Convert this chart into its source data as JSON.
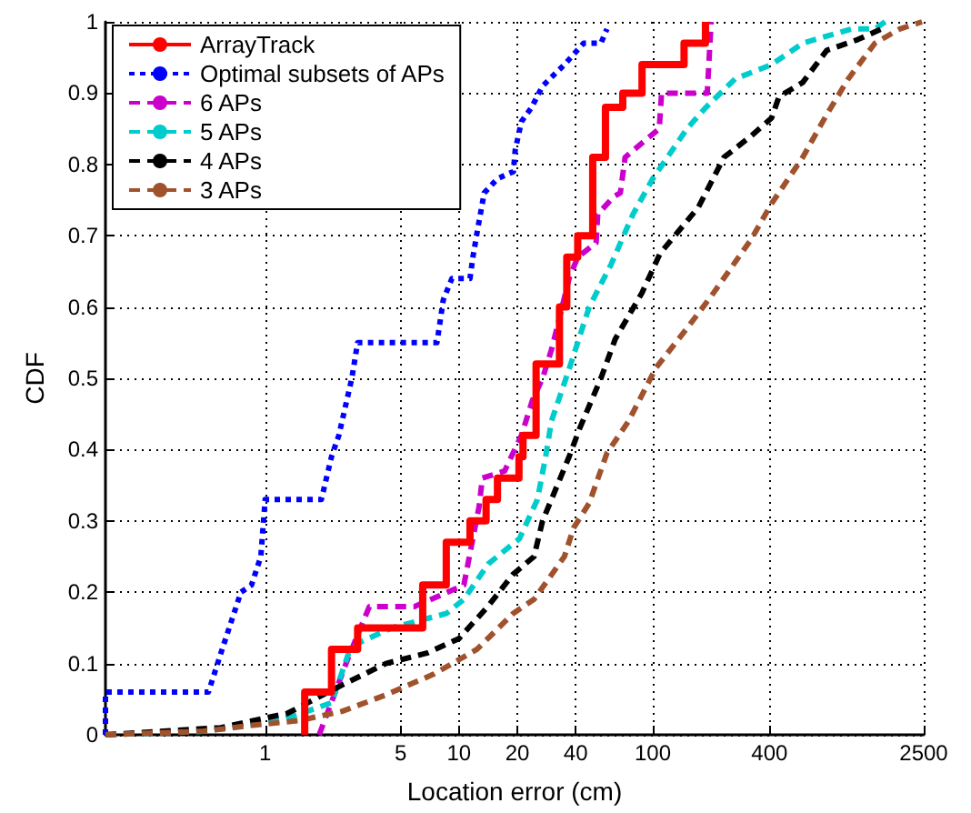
{
  "chart_data": {
    "type": "line",
    "xlabel": "Location error (cm)",
    "ylabel": "CDF",
    "log": "x",
    "grid": true,
    "legend": "top left",
    "marker": "none",
    "xlim": [
      0.15,
      2500
    ],
    "xticks": [
      1,
      5,
      10,
      20,
      40,
      100,
      400,
      2500
    ],
    "ylim": [
      0,
      1
    ],
    "yticks": [
      0,
      0.1,
      0.2,
      0.3,
      0.4,
      0.5,
      0.6,
      0.7,
      0.8,
      0.9,
      1
    ],
    "series": [
      {
        "name": "ArrayTrack",
        "type": "step",
        "color": "#ff0000",
        "line_style": "solid",
        "x": [
          1.6,
          1.6,
          2.2,
          3.0,
          6.5,
          8.6,
          11.4,
          13.8,
          15.8,
          20.4,
          21.4,
          25,
          33,
          36,
          41,
          49,
          57,
          70,
          88,
          145,
          187
        ],
        "values": [
          0,
          0.06,
          0.12,
          0.15,
          0.21,
          0.27,
          0.3,
          0.33,
          0.36,
          0.39,
          0.42,
          0.52,
          0.6,
          0.67,
          0.7,
          0.81,
          0.88,
          0.9,
          0.94,
          0.97,
          1.0
        ]
      },
      {
        "name": "Optimal subsets of APs",
        "color": "#0000ff",
        "line_style": "dotted",
        "x": [
          0.15,
          0.15,
          0.51,
          0.6,
          0.75,
          0.85,
          0.95,
          1.0,
          1.95,
          2.2,
          2.4,
          2.8,
          3.0,
          7.7,
          8.3,
          9.2,
          11.4,
          11.8,
          12.5,
          13.5,
          15.8,
          19.1,
          19.5,
          21,
          23.7,
          27,
          35,
          44,
          54,
          58
        ],
        "values": [
          0,
          0.06,
          0.06,
          0.12,
          0.2,
          0.21,
          0.25,
          0.33,
          0.33,
          0.39,
          0.42,
          0.5,
          0.55,
          0.55,
          0.61,
          0.64,
          0.64,
          0.67,
          0.71,
          0.76,
          0.78,
          0.79,
          0.82,
          0.86,
          0.88,
          0.91,
          0.94,
          0.97,
          0.97,
          0.99
        ]
      },
      {
        "name": "6 APs",
        "color": "#cc00cc",
        "line_style": "dashed",
        "x": [
          1.9,
          2.7,
          3.45,
          5.9,
          10.6,
          11.5,
          12.7,
          13.2,
          17.2,
          21,
          24,
          27,
          30,
          32,
          37,
          41,
          51,
          52,
          63,
          68,
          72,
          88,
          108,
          111,
          191,
          200
        ],
        "values": [
          0,
          0.11,
          0.18,
          0.18,
          0.21,
          0.26,
          0.32,
          0.36,
          0.37,
          0.42,
          0.47,
          0.5,
          0.54,
          0.57,
          0.64,
          0.67,
          0.69,
          0.73,
          0.755,
          0.76,
          0.81,
          0.83,
          0.85,
          0.9,
          0.9,
          1.0
        ]
      },
      {
        "name": "5 APs",
        "color": "#00cccc",
        "line_style": "dashed",
        "x": [
          0.15,
          0.49,
          1.2,
          2.2,
          2.7,
          3.1,
          4.5,
          6.2,
          8.6,
          10.6,
          14.2,
          20.5,
          25.4,
          28,
          30,
          36.7,
          47,
          61,
          79,
          100,
          150,
          188,
          266,
          410,
          594,
          1060,
          1400,
          1580
        ],
        "values": [
          0,
          0.005,
          0.02,
          0.045,
          0.115,
          0.13,
          0.15,
          0.16,
          0.17,
          0.19,
          0.24,
          0.275,
          0.33,
          0.39,
          0.44,
          0.51,
          0.6,
          0.66,
          0.73,
          0.78,
          0.85,
          0.88,
          0.92,
          0.94,
          0.97,
          0.99,
          0.99,
          1.0
        ]
      },
      {
        "name": "4 APs",
        "color": "#000000",
        "line_style": "dashed",
        "x": [
          0.15,
          0.59,
          1.3,
          2.5,
          4.2,
          6.9,
          10,
          14.1,
          19,
          24.4,
          27,
          30,
          37,
          42,
          54,
          64,
          88,
          109,
          172,
          233,
          322,
          410,
          448,
          594,
          790,
          1140,
          1510
        ],
        "values": [
          0,
          0.01,
          0.03,
          0.07,
          0.1,
          0.115,
          0.135,
          0.18,
          0.225,
          0.25,
          0.3,
          0.33,
          0.39,
          0.43,
          0.5,
          0.555,
          0.62,
          0.675,
          0.74,
          0.81,
          0.84,
          0.865,
          0.895,
          0.915,
          0.96,
          0.975,
          0.99
        ]
      },
      {
        "name": "3 APs",
        "color": "#a0522d",
        "line_style": "dashed",
        "x": [
          0.15,
          0.48,
          0.84,
          1.5,
          2.5,
          4.2,
          7.4,
          12.4,
          19,
          24.4,
          35,
          39,
          47,
          58,
          75,
          104,
          150,
          200,
          322,
          410,
          594,
          790,
          1020,
          1400,
          1880,
          2450
        ],
        "values": [
          0,
          0.005,
          0.013,
          0.02,
          0.033,
          0.056,
          0.085,
          0.12,
          0.17,
          0.19,
          0.25,
          0.29,
          0.325,
          0.395,
          0.44,
          0.515,
          0.57,
          0.615,
          0.695,
          0.745,
          0.81,
          0.87,
          0.92,
          0.97,
          0.99,
          1.0
        ]
      }
    ]
  }
}
